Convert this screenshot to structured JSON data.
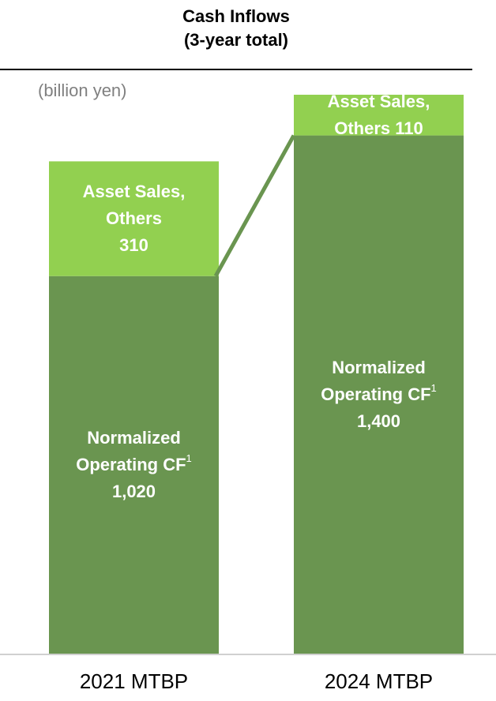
{
  "chart_data": {
    "type": "stacked_bar",
    "title": "Cash Inflows",
    "subtitle": "(3-year total)",
    "unit_label": "(billion yen)",
    "categories": [
      "2021 MTBP",
      "2024 MTBP"
    ],
    "series": [
      {
        "name": "Normalized Operating CF",
        "superscript": "1",
        "color": "#6a9550",
        "values": [
          1020,
          1400
        ],
        "value_labels": [
          "1,020",
          "1,400"
        ]
      },
      {
        "name": "Asset Sales, Others",
        "color": "#92d050",
        "values": [
          310,
          110
        ],
        "value_labels": [
          "310",
          "110"
        ]
      }
    ]
  }
}
